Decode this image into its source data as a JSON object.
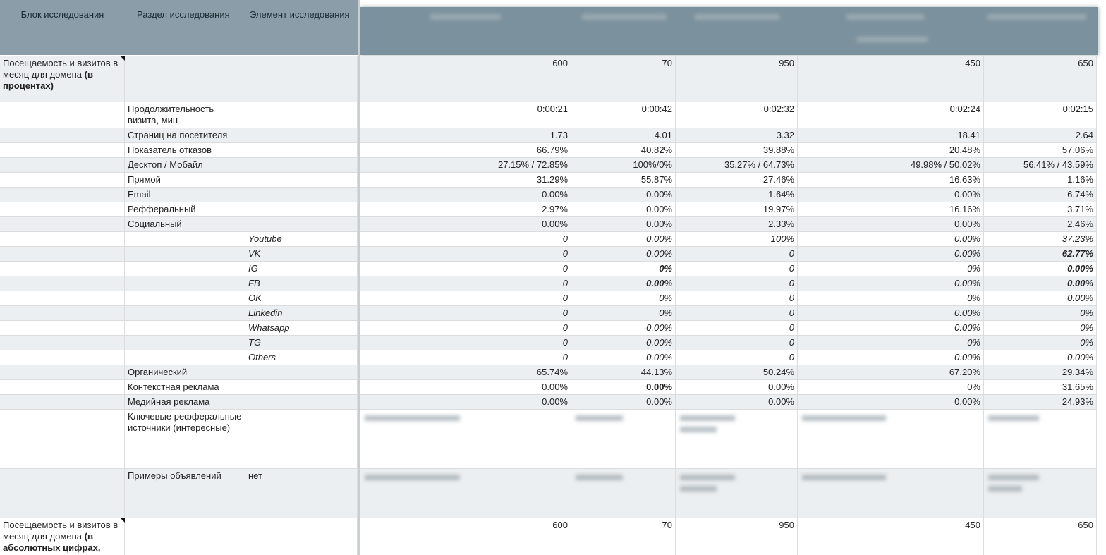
{
  "table": {
    "header": [
      "Блок исследования",
      "Раздел исследования",
      "Элемент исследования"
    ],
    "rows": [
      {
        "block": "Посещаемость и визитов в месяц для домена",
        "block_bold": "(в процентах)",
        "cells": [
          "600",
          "70",
          "950",
          "450",
          "650"
        ]
      },
      {
        "section": "Продолжительность визита, мин",
        "cells": [
          "0:00:21",
          "0:00:42",
          "0:02:32",
          "0:02:24",
          "0:02:15"
        ]
      },
      {
        "section": "Страниц на посетителя",
        "cells": [
          "1.73",
          "4.01",
          "3.32",
          "18.41",
          "2.64"
        ]
      },
      {
        "section": "Показатель отказов",
        "cells": [
          "66.79%",
          "40.82%",
          "39.88%",
          "20.48%",
          "57.06%"
        ]
      },
      {
        "section": "Десктоп / Мобайл",
        "cells": [
          "27.15% / 72.85%",
          "100%/0%",
          "35.27% / 64.73%",
          "49.98% / 50.02%",
          "56.41% / 43.59%"
        ]
      },
      {
        "section": "Прямой",
        "cells": [
          "31.29%",
          "55.87%",
          "27.46%",
          "16.63%",
          "1.16%"
        ]
      },
      {
        "section": "Email",
        "cells": [
          "0.00%",
          "0.00%",
          "1.64%",
          "0.00%",
          "6.74%"
        ]
      },
      {
        "section": "Рефферальный",
        "cells": [
          "2.97%",
          "0.00%",
          "19.97%",
          "16.16%",
          "3.71%"
        ]
      },
      {
        "section": "Социальный",
        "cells": [
          "0.00%",
          "0.00%",
          "2.33%",
          "0.00%",
          "2.46%"
        ]
      },
      {
        "element": "Youtube",
        "italic": true,
        "cells": [
          "0",
          "0.00%",
          "100%",
          "0.00%",
          "37.23%"
        ]
      },
      {
        "element": "VK",
        "italic": true,
        "bold": [
          4
        ],
        "cells": [
          "0",
          "0.00%",
          "0",
          "0.00%",
          "62.77%"
        ]
      },
      {
        "element": "IG",
        "italic": true,
        "bold": [
          1,
          4
        ],
        "cells": [
          "0",
          "0%",
          "0",
          "0%",
          "0.00%"
        ]
      },
      {
        "element": "FB",
        "italic": true,
        "bold": [
          1,
          4
        ],
        "cells": [
          "0",
          "0.00%",
          "0",
          "0.00%",
          "0.00%"
        ]
      },
      {
        "element": "OK",
        "italic": true,
        "cells": [
          "0",
          "0%",
          "0",
          "0%",
          "0.00%"
        ]
      },
      {
        "element": "Linkedin",
        "italic": true,
        "cells": [
          "0",
          "0%",
          "0",
          "0.00%",
          "0%"
        ]
      },
      {
        "element": "Whatsapp",
        "italic": true,
        "cells": [
          "0",
          "0.00%",
          "0",
          "0.00%",
          "0%"
        ]
      },
      {
        "element": "TG",
        "italic": true,
        "cells": [
          "0",
          "0.00%",
          "0",
          "0%",
          "0%"
        ]
      },
      {
        "element": "Others",
        "italic": true,
        "cells": [
          "0",
          "0.00%",
          "0",
          "0.00%",
          "0.00%"
        ]
      },
      {
        "section": "Органический",
        "cells": [
          "65.74%",
          "44.13%",
          "50.24%",
          "67.20%",
          "29.34%"
        ]
      },
      {
        "section": "Контекстная реклама",
        "bold": [
          1
        ],
        "cells": [
          "0.00%",
          "0.00%",
          "0.00%",
          "0%",
          "31.65%"
        ]
      },
      {
        "section": "Медийная реклама",
        "cells": [
          "0.00%",
          "0.00%",
          "0.00%",
          "0.00%",
          "24.93%"
        ]
      },
      {
        "section": "Ключевые рефферальные источники (интересные)",
        "cells": [
          null,
          null,
          null,
          null,
          null
        ]
      },
      {
        "section": "Примеры объявлений",
        "element": "нет",
        "cells": [
          null,
          null,
          null,
          null,
          null
        ]
      },
      {
        "block": "Посещаемость и визитов в месяц для домена",
        "block_bold": "(в абсолютных цифрах,",
        "cells": [
          "600",
          "70",
          "950",
          "450",
          "650"
        ]
      }
    ]
  }
}
